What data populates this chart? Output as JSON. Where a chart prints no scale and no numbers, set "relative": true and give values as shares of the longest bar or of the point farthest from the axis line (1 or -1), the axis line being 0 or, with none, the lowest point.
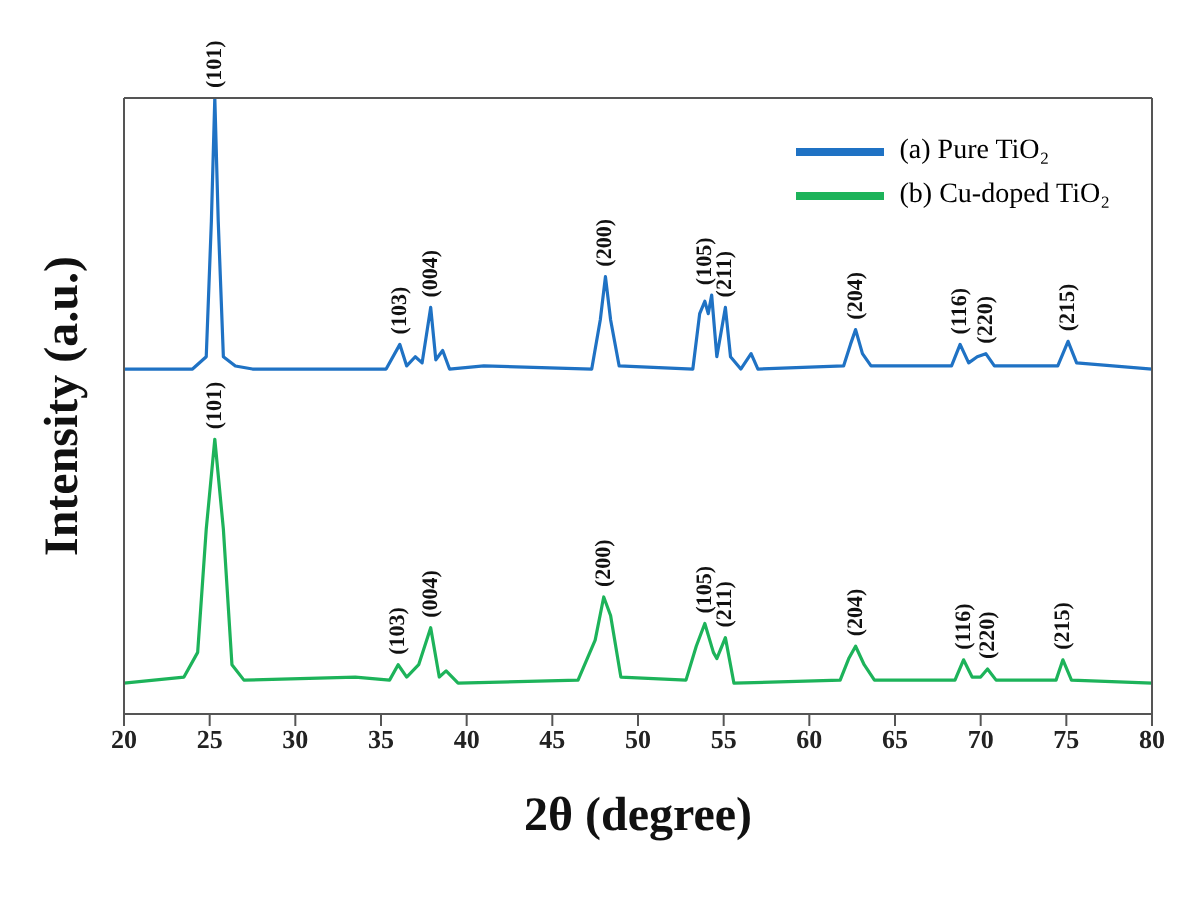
{
  "chart_data": {
    "type": "line",
    "relative": true,
    "xlabel": "2θ (degree)",
    "ylabel": "Intensity (a.u.)",
    "xlim": [
      20,
      80
    ],
    "xticks": [
      20,
      25,
      30,
      35,
      40,
      45,
      50,
      55,
      60,
      65,
      70,
      75,
      80
    ],
    "legend": "top right",
    "grid": false,
    "marker": "none",
    "line_style": "solid",
    "series": [
      {
        "name": "(a) Pure TiO₂",
        "color": "#1f72c4",
        "x": [
          20,
          24,
          24.8,
          25.1,
          25.3,
          25.5,
          25.8,
          26.5,
          27.5,
          33,
          35.3,
          36.1,
          36.5,
          37,
          37.4,
          37.9,
          38.2,
          38.6,
          39,
          41,
          47.3,
          47.8,
          48.1,
          48.4,
          48.9,
          53.2,
          53.6,
          53.9,
          54.1,
          54.3,
          54.6,
          55.1,
          55.4,
          56,
          56.6,
          57,
          62,
          62.4,
          62.7,
          63.1,
          63.6,
          68.3,
          68.8,
          69.3,
          69.8,
          70.3,
          70.8,
          74.5,
          75.1,
          75.6,
          80
        ],
        "values": [
          0.56,
          0.56,
          0.58,
          0.8,
          1,
          0.8,
          0.58,
          0.565,
          0.56,
          0.56,
          0.56,
          0.6,
          0.565,
          0.58,
          0.57,
          0.66,
          0.575,
          0.59,
          0.56,
          0.565,
          0.56,
          0.64,
          0.71,
          0.64,
          0.565,
          0.56,
          0.65,
          0.67,
          0.65,
          0.68,
          0.58,
          0.66,
          0.58,
          0.56,
          0.585,
          0.56,
          0.565,
          0.6,
          0.624,
          0.585,
          0.565,
          0.565,
          0.6,
          0.57,
          0.58,
          0.585,
          0.565,
          0.565,
          0.605,
          0.57,
          0.56
        ]
      },
      {
        "name": "(b) Cu-doped TiO₂",
        "color": "#1db35a",
        "x": [
          20,
          23.5,
          24.3,
          24.8,
          25.3,
          25.8,
          26.3,
          27,
          33.5,
          35.5,
          36,
          36.5,
          37.2,
          37.9,
          38.4,
          38.8,
          39.5,
          46.5,
          47.5,
          48,
          48.4,
          49,
          52.8,
          53.4,
          53.9,
          54.4,
          54.6,
          55.1,
          55.6,
          61.8,
          62.3,
          62.7,
          63.2,
          63.8,
          68.5,
          69,
          69.5,
          70,
          70.4,
          70.9,
          74.4,
          74.8,
          75.3,
          80
        ],
        "values": [
          0.05,
          0.06,
          0.1,
          0.3,
          0.446,
          0.3,
          0.08,
          0.055,
          0.06,
          0.055,
          0.08,
          0.06,
          0.08,
          0.14,
          0.06,
          0.07,
          0.05,
          0.055,
          0.12,
          0.19,
          0.16,
          0.06,
          0.055,
          0.11,
          0.147,
          0.1,
          0.09,
          0.124,
          0.05,
          0.055,
          0.09,
          0.11,
          0.08,
          0.055,
          0.055,
          0.088,
          0.06,
          0.06,
          0.073,
          0.055,
          0.055,
          0.088,
          0.055,
          0.05
        ]
      }
    ],
    "annotations": [
      {
        "text": "(101)",
        "x": 25.3,
        "y": 1
      },
      {
        "text": "(103)",
        "x": 36.1,
        "y": 0.6
      },
      {
        "text": "(004)",
        "x": 37.9,
        "y": 0.66
      },
      {
        "text": "(200)",
        "x": 48.1,
        "y": 0.71
      },
      {
        "text": "(105)",
        "x": 53.9,
        "y": 0.68
      },
      {
        "text": "(211)",
        "x": 55.1,
        "y": 0.66
      },
      {
        "text": "(204)",
        "x": 62.7,
        "y": 0.624
      },
      {
        "text": "(116)",
        "x": 68.8,
        "y": 0.6
      },
      {
        "text": "(220)",
        "x": 70.3,
        "y": 0.585
      },
      {
        "text": "(215)",
        "x": 75.1,
        "y": 0.605
      },
      {
        "text": "(101)",
        "x": 25.3,
        "y": 0.446
      },
      {
        "text": "(103)",
        "x": 36,
        "y": 0.08
      },
      {
        "text": "(004)",
        "x": 37.9,
        "y": 0.14
      },
      {
        "text": "(200)",
        "x": 48,
        "y": 0.19
      },
      {
        "text": "(105)",
        "x": 53.9,
        "y": 0.147
      },
      {
        "text": "(211)",
        "x": 55.1,
        "y": 0.124
      },
      {
        "text": "(204)",
        "x": 62.7,
        "y": 0.11
      },
      {
        "text": "(116)",
        "x": 69,
        "y": 0.088
      },
      {
        "text": "(220)",
        "x": 70.4,
        "y": 0.073
      },
      {
        "text": "(215)",
        "x": 74.8,
        "y": 0.088
      }
    ]
  }
}
